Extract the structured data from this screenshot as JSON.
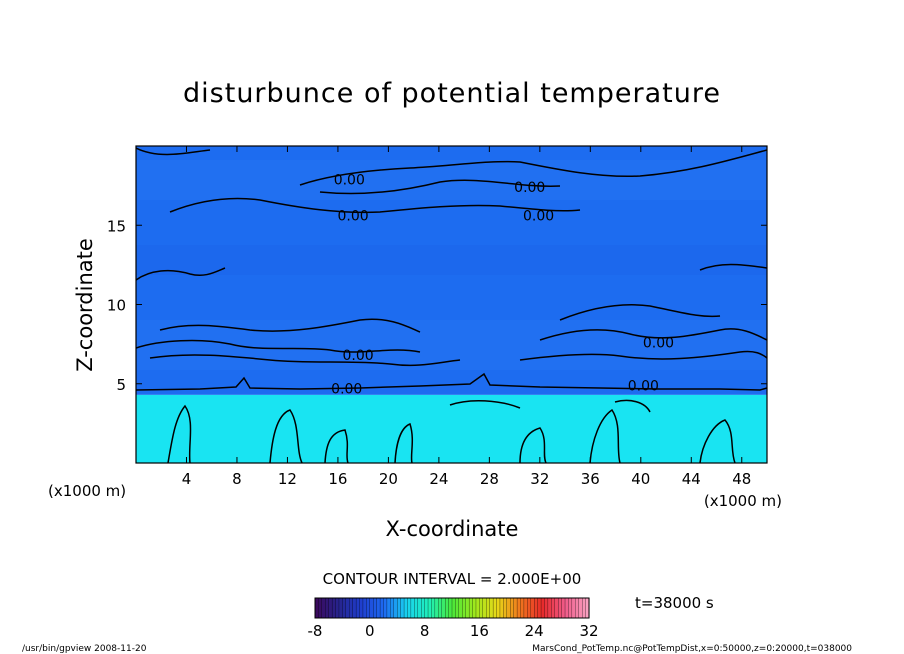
{
  "chart_data": {
    "type": "heatmap",
    "title": "disturbunce of potential temperature",
    "xlabel": "X-coordinate",
    "ylabel": "Z-coordinate",
    "x_unit_left": "(x1000 m)",
    "x_unit_right": "(x1000 m)",
    "xlim": [
      0,
      50
    ],
    "ylim": [
      0,
      20
    ],
    "x_ticks": [
      4,
      8,
      12,
      16,
      20,
      24,
      28,
      32,
      36,
      40,
      44,
      48
    ],
    "y_ticks": [
      5,
      10,
      15
    ],
    "contour_interval_label": "CONTOUR INTERVAL = 2.000E+00",
    "contour_label_value": "0.00",
    "contour_label_positions": [
      {
        "x": 17.2,
        "z": 15.6
      },
      {
        "x": 16.7,
        "z": 4.7
      },
      {
        "x": 17.6,
        "z": 6.8
      },
      {
        "x": 16.9,
        "z": 17.9
      },
      {
        "x": 31.2,
        "z": 17.4
      },
      {
        "x": 31.9,
        "z": 15.6
      },
      {
        "x": 41.4,
        "z": 7.6
      },
      {
        "x": 40.2,
        "z": 4.9
      }
    ],
    "regions": [
      {
        "z_from": 0,
        "z_to": 4.3,
        "value": 2,
        "color": "#19e4f2"
      },
      {
        "z_from": 4.3,
        "z_to": 20,
        "value": -2,
        "color": "#1d6cf0"
      }
    ],
    "colorbar": {
      "ticks": [
        -8,
        0,
        8,
        16,
        24,
        32
      ],
      "range": [
        -8,
        32
      ],
      "colors": [
        "#3a0a5e",
        "#26248f",
        "#1f3fd0",
        "#1e6bf2",
        "#19d3f0",
        "#1ff0b8",
        "#4ae83a",
        "#9ee81e",
        "#e8d818",
        "#f0781e",
        "#e82a2a",
        "#f05a88",
        "#f8a0c0"
      ]
    },
    "time_label": "t=38000 s"
  },
  "footer": {
    "left": "/usr/bin/gpview   2008-11-20",
    "right": "MarsCond_PotTemp.nc@PotTempDist,x=0:50000,z=0:20000,t=038000"
  }
}
